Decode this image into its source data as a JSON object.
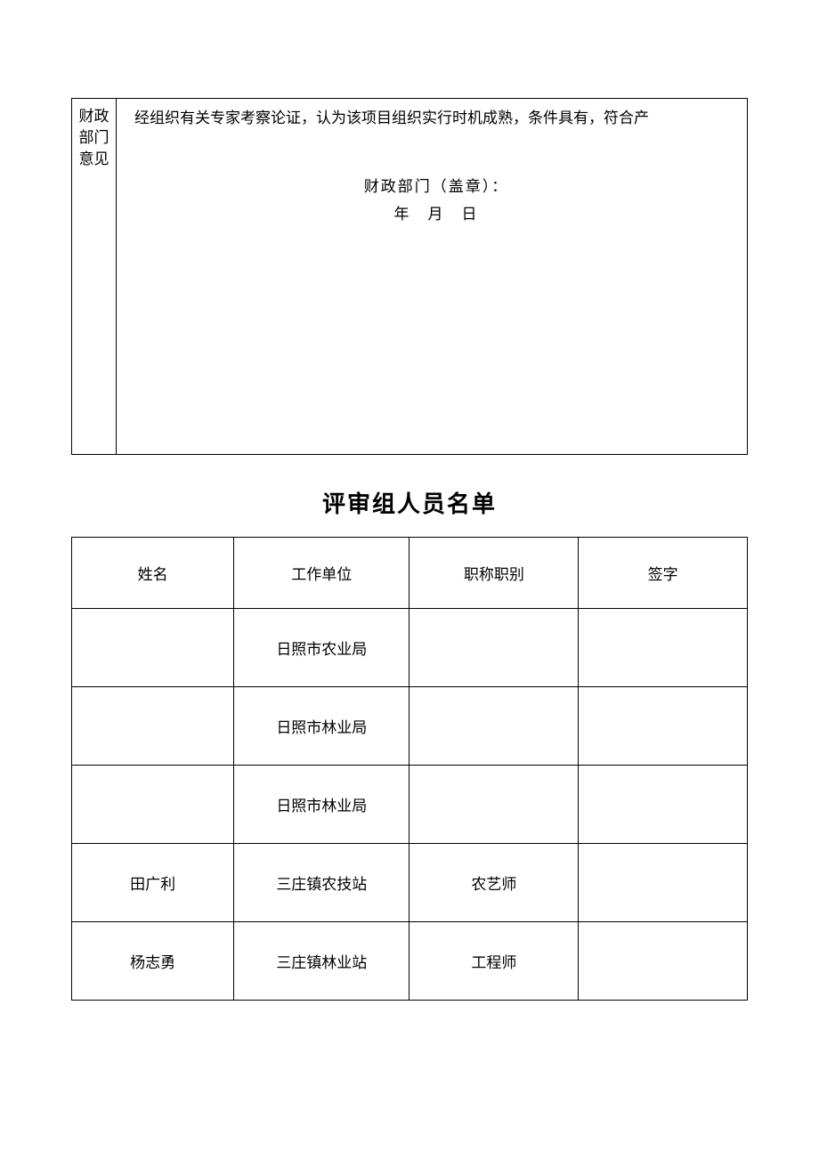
{
  "opinion": {
    "label": "财政部门意见",
    "text": "经组织有关专家考察论证，认为该项目组织实行时机成熟，条件具有，符合产",
    "stamp_label": "财政部门（盖章）：",
    "date_label": "年　月　日"
  },
  "roster": {
    "title": "评审组人员名单",
    "headers": {
      "name": "姓名",
      "unit": "工作单位",
      "title": "职称职别",
      "sign": "签字"
    },
    "rows": [
      {
        "name": "",
        "unit": "日照市农业局",
        "title": "",
        "sign": ""
      },
      {
        "name": "",
        "unit": "日照市林业局",
        "title": "",
        "sign": ""
      },
      {
        "name": "",
        "unit": "日照市林业局",
        "title": "",
        "sign": ""
      },
      {
        "name": "田广利",
        "unit": "三庄镇农技站",
        "title": "农艺师",
        "sign": ""
      },
      {
        "name": "杨志勇",
        "unit": "三庄镇林业站",
        "title": "工程师",
        "sign": ""
      }
    ]
  },
  "colors": {
    "border": "#000000",
    "text": "#000000",
    "background": "#ffffff"
  }
}
